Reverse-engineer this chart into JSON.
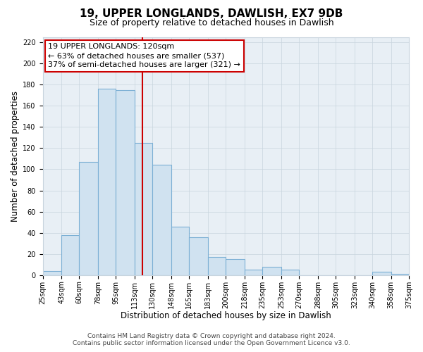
{
  "title": "19, UPPER LONGLANDS, DAWLISH, EX7 9DB",
  "subtitle": "Size of property relative to detached houses in Dawlish",
  "xlabel": "Distribution of detached houses by size in Dawlish",
  "ylabel": "Number of detached properties",
  "bar_edges": [
    25,
    43,
    60,
    78,
    95,
    113,
    130,
    148,
    165,
    183,
    200,
    218,
    235,
    253,
    270,
    288,
    305,
    323,
    340,
    358,
    375
  ],
  "bar_heights": [
    4,
    38,
    107,
    176,
    175,
    125,
    104,
    46,
    36,
    17,
    15,
    5,
    8,
    5,
    0,
    0,
    0,
    0,
    3,
    1
  ],
  "bar_color": "#d0e2f0",
  "bar_edge_color": "#7bafd4",
  "vline_x": 120,
  "vline_color": "#cc0000",
  "annotation_title": "19 UPPER LONGLANDS: 120sqm",
  "annotation_line1": "← 63% of detached houses are smaller (537)",
  "annotation_line2": "37% of semi-detached houses are larger (321) →",
  "annotation_box_facecolor": "#ffffff",
  "annotation_box_edge_color": "#cc0000",
  "ylim": [
    0,
    225
  ],
  "yticks": [
    0,
    20,
    40,
    60,
    80,
    100,
    120,
    140,
    160,
    180,
    200,
    220
  ],
  "tick_labels": [
    "25sqm",
    "43sqm",
    "60sqm",
    "78sqm",
    "95sqm",
    "113sqm",
    "130sqm",
    "148sqm",
    "165sqm",
    "183sqm",
    "200sqm",
    "218sqm",
    "235sqm",
    "253sqm",
    "270sqm",
    "288sqm",
    "305sqm",
    "323sqm",
    "340sqm",
    "358sqm",
    "375sqm"
  ],
  "footer_line1": "Contains HM Land Registry data © Crown copyright and database right 2024.",
  "footer_line2": "Contains public sector information licensed under the Open Government Licence v3.0.",
  "fig_facecolor": "#ffffff",
  "plot_facecolor": "#e8eff5",
  "grid_color": "#c8d4de",
  "title_fontsize": 11,
  "subtitle_fontsize": 9,
  "axis_label_fontsize": 8.5,
  "tick_fontsize": 7,
  "footer_fontsize": 6.5,
  "annotation_fontsize": 8
}
